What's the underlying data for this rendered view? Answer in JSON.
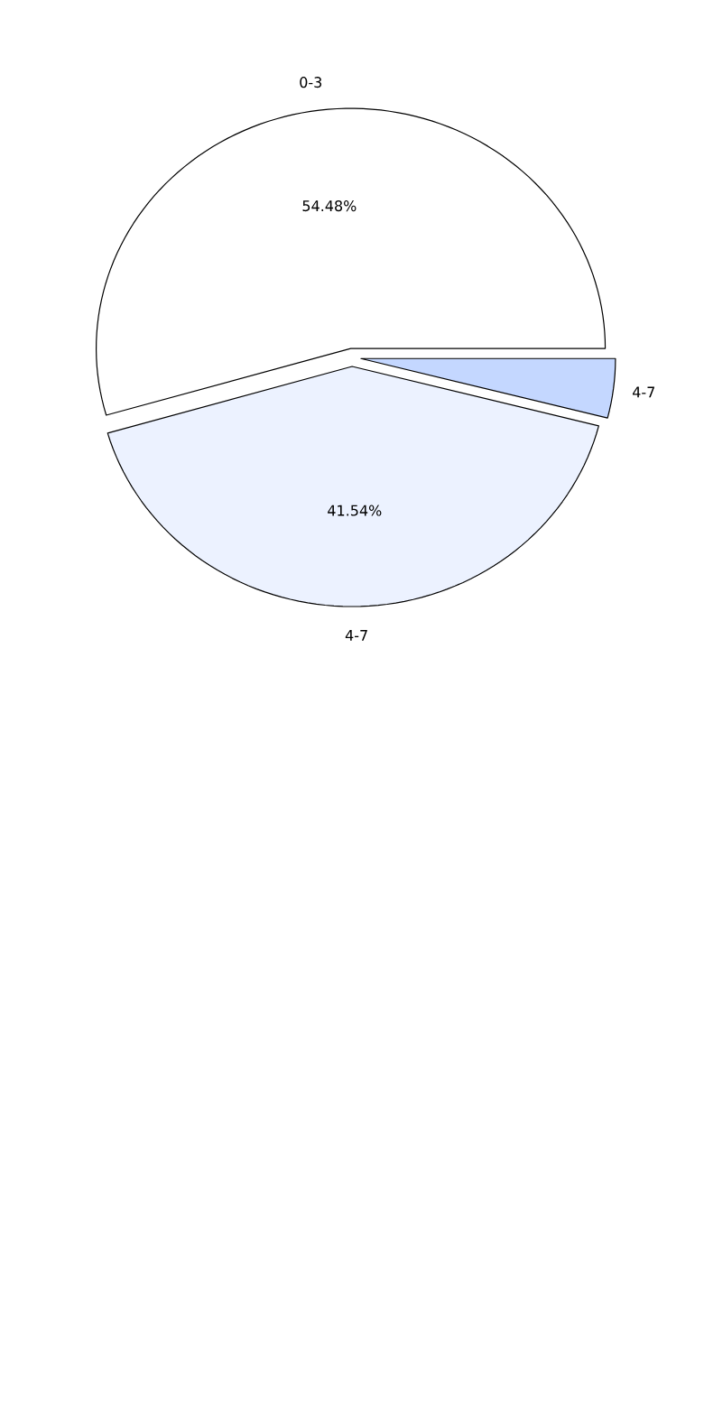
{
  "chart_data": {
    "type": "pie",
    "categories": [
      "0-3",
      "4-7",
      "4-7"
    ],
    "values": [
      54.48,
      41.54,
      3.98
    ],
    "colors": [
      "#ffffff",
      "#ecf2ff",
      "#c4d7ff"
    ],
    "value_labels": [
      "54.48%",
      "41.54%",
      null
    ]
  }
}
